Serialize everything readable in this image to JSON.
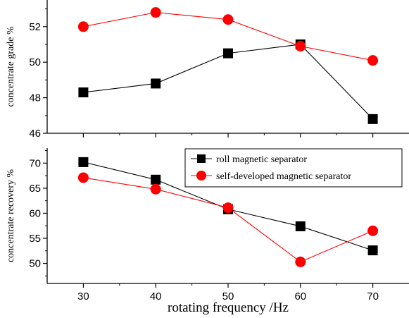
{
  "chart_data": [
    {
      "type": "line",
      "title": "",
      "xlabel": "",
      "ylabel": "concentrate grade %",
      "x": [
        30,
        40,
        50,
        60,
        70
      ],
      "xlim": [
        25,
        75
      ],
      "ylim": [
        46,
        53.5
      ],
      "yticks": [
        46,
        48,
        50,
        52
      ],
      "grid": false,
      "series": [
        {
          "key": "roll",
          "values": [
            48.3,
            48.8,
            50.5,
            51.0,
            46.8
          ],
          "color": "#000000",
          "marker": "square"
        },
        {
          "key": "self",
          "values": [
            52.0,
            52.8,
            52.4,
            50.9,
            50.1
          ],
          "color": "#ff0000",
          "marker": "circle"
        }
      ]
    },
    {
      "type": "line",
      "title": "",
      "xlabel": "rotating frequency /Hz",
      "ylabel": "concentrate recovery %",
      "x": [
        30,
        40,
        50,
        60,
        70
      ],
      "xlim": [
        25,
        75
      ],
      "ylim": [
        46,
        73
      ],
      "yticks": [
        50,
        55,
        60,
        65,
        70
      ],
      "xticks": [
        30,
        40,
        50,
        60,
        70
      ],
      "grid": false,
      "legend_position": "top-right",
      "series": [
        {
          "key": "roll",
          "name": "roll magnetic separator",
          "values": [
            70.2,
            66.7,
            60.8,
            57.4,
            52.6
          ],
          "color": "#000000",
          "marker": "square"
        },
        {
          "key": "self",
          "name": "self-developed magnetic separator",
          "values": [
            67.1,
            64.8,
            61.1,
            50.3,
            56.5
          ],
          "color": "#ff0000",
          "marker": "circle"
        }
      ]
    }
  ]
}
